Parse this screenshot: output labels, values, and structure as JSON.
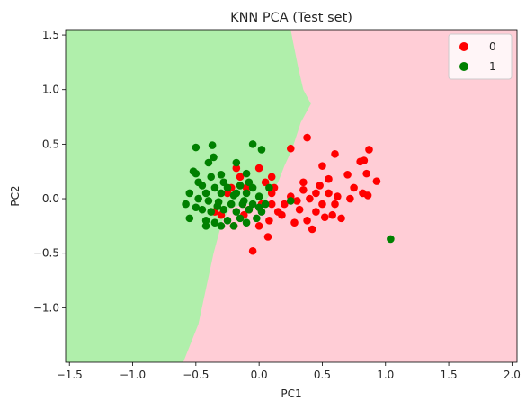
{
  "chart_data": {
    "type": "scatter",
    "title": "KNN PCA (Test set)",
    "xlabel": "PC1",
    "ylabel": "PC2",
    "xlim": [
      -1.53,
      2.04
    ],
    "ylim": [
      -1.5,
      1.55
    ],
    "xticks": [
      -1.5,
      -1.0,
      -0.5,
      0.0,
      0.5,
      1.0,
      1.5,
      2.0
    ],
    "xtick_labels": [
      "−1.5",
      "−1.0",
      "−0.5",
      "0.0",
      "0.5",
      "1.0",
      "1.5",
      "2.0"
    ],
    "yticks": [
      -1.0,
      -0.5,
      0.0,
      0.5,
      1.0,
      1.5
    ],
    "ytick_labels": [
      "−1.0",
      "−0.5",
      "0.0",
      "0.5",
      "1.0",
      "1.5"
    ],
    "grid": false,
    "legend_position": "top-right",
    "decision_regions": [
      {
        "class": "0",
        "color": "#ffcdd6"
      },
      {
        "class": "1",
        "color": "#b0efab"
      }
    ],
    "decision_boundary": [
      [
        -0.6,
        -1.5
      ],
      [
        -0.48,
        -1.15
      ],
      [
        -0.36,
        -0.5
      ],
      [
        -0.29,
        -0.2
      ],
      [
        -0.22,
        -0.08
      ],
      [
        0.05,
        -0.02
      ],
      [
        0.15,
        0.15
      ],
      [
        0.2,
        0.3
      ],
      [
        0.26,
        0.45
      ],
      [
        0.33,
        0.7
      ],
      [
        0.41,
        0.87
      ],
      [
        0.35,
        1.0
      ],
      [
        0.31,
        1.2
      ],
      [
        0.27,
        1.43
      ],
      [
        0.25,
        1.55
      ]
    ],
    "series": [
      {
        "name": "0",
        "color": "#ff0000",
        "points": [
          [
            0.25,
            0.46
          ],
          [
            0.38,
            0.56
          ],
          [
            0.6,
            0.41
          ],
          [
            0.87,
            0.45
          ],
          [
            0.8,
            0.34
          ],
          [
            0.83,
            0.35
          ],
          [
            0.5,
            0.3
          ],
          [
            0.7,
            0.22
          ],
          [
            0.85,
            0.23
          ],
          [
            0.55,
            0.18
          ],
          [
            0.35,
            0.08
          ],
          [
            0.45,
            0.05
          ],
          [
            0.62,
            0.02
          ],
          [
            0.75,
            0.1
          ],
          [
            0.93,
            0.16
          ],
          [
            0.82,
            0.05
          ],
          [
            0.86,
            0.03
          ],
          [
            0.25,
            0.02
          ],
          [
            0.4,
            0.0
          ],
          [
            0.5,
            -0.05
          ],
          [
            0.3,
            -0.02
          ],
          [
            0.2,
            -0.05
          ],
          [
            0.12,
            0.1
          ],
          [
            0.05,
            0.15
          ],
          [
            0.1,
            0.2
          ],
          [
            0.15,
            -0.12
          ],
          [
            0.32,
            -0.1
          ],
          [
            0.45,
            -0.12
          ],
          [
            0.58,
            -0.15
          ],
          [
            0.65,
            -0.18
          ],
          [
            0.52,
            -0.17
          ],
          [
            0.38,
            -0.2
          ],
          [
            0.42,
            -0.28
          ],
          [
            0.28,
            -0.22
          ],
          [
            0.08,
            -0.2
          ],
          [
            0.0,
            -0.25
          ],
          [
            0.07,
            -0.35
          ],
          [
            -0.05,
            -0.48
          ],
          [
            -0.12,
            -0.15
          ],
          [
            -0.2,
            -0.25
          ],
          [
            -0.08,
            -0.1
          ],
          [
            -0.25,
            0.05
          ],
          [
            -0.15,
            0.2
          ],
          [
            -0.18,
            0.28
          ],
          [
            0.0,
            0.28
          ],
          [
            0.1,
            0.05
          ],
          [
            0.02,
            -0.05
          ],
          [
            -0.3,
            -0.15
          ],
          [
            -0.35,
            -0.12
          ],
          [
            -0.1,
            0.1
          ],
          [
            0.6,
            -0.05
          ],
          [
            0.48,
            0.12
          ],
          [
            0.72,
            0.0
          ],
          [
            0.18,
            -0.15
          ],
          [
            0.1,
            -0.05
          ],
          [
            0.55,
            0.05
          ],
          [
            0.35,
            0.15
          ],
          [
            -0.22,
            0.1
          ]
        ]
      },
      {
        "name": "1",
        "color": "#008000",
        "points": [
          [
            -0.5,
            0.47
          ],
          [
            -0.37,
            0.49
          ],
          [
            -0.05,
            0.5
          ],
          [
            0.02,
            0.45
          ],
          [
            -0.36,
            0.38
          ],
          [
            -0.4,
            0.33
          ],
          [
            -0.18,
            0.33
          ],
          [
            -0.5,
            0.23
          ],
          [
            -0.52,
            0.25
          ],
          [
            -0.3,
            0.22
          ],
          [
            -0.1,
            0.23
          ],
          [
            -0.45,
            0.12
          ],
          [
            -0.35,
            0.1
          ],
          [
            -0.25,
            0.1
          ],
          [
            -0.15,
            0.12
          ],
          [
            -0.05,
            0.1
          ],
          [
            -0.42,
            0.05
          ],
          [
            -0.3,
            0.05
          ],
          [
            -0.2,
            0.03
          ],
          [
            -0.1,
            0.05
          ],
          [
            0.0,
            0.02
          ],
          [
            -0.55,
            0.05
          ],
          [
            -0.48,
            0.0
          ],
          [
            -0.4,
            -0.02
          ],
          [
            -0.32,
            -0.03
          ],
          [
            -0.22,
            -0.05
          ],
          [
            -0.12,
            -0.02
          ],
          [
            -0.05,
            -0.05
          ],
          [
            0.05,
            -0.05
          ],
          [
            -0.5,
            -0.08
          ],
          [
            -0.45,
            -0.1
          ],
          [
            -0.38,
            -0.12
          ],
          [
            -0.28,
            -0.1
          ],
          [
            -0.18,
            -0.12
          ],
          [
            -0.08,
            -0.1
          ],
          [
            0.02,
            -0.12
          ],
          [
            -0.55,
            -0.18
          ],
          [
            -0.42,
            -0.2
          ],
          [
            -0.35,
            -0.22
          ],
          [
            -0.25,
            -0.2
          ],
          [
            -0.15,
            -0.18
          ],
          [
            -0.42,
            -0.25
          ],
          [
            -0.3,
            -0.25
          ],
          [
            -0.2,
            -0.25
          ],
          [
            -0.1,
            -0.22
          ],
          [
            0.25,
            -0.02
          ],
          [
            1.04,
            -0.37
          ],
          [
            -0.38,
            0.2
          ],
          [
            -0.28,
            0.15
          ],
          [
            -0.18,
            0.05
          ],
          [
            -0.08,
            0.15
          ],
          [
            0.08,
            0.1
          ],
          [
            -0.02,
            -0.18
          ],
          [
            -0.48,
            0.15
          ],
          [
            -0.33,
            -0.07
          ],
          [
            -0.13,
            -0.05
          ],
          [
            -0.58,
            -0.05
          ],
          [
            0.0,
            -0.08
          ]
        ]
      }
    ]
  }
}
